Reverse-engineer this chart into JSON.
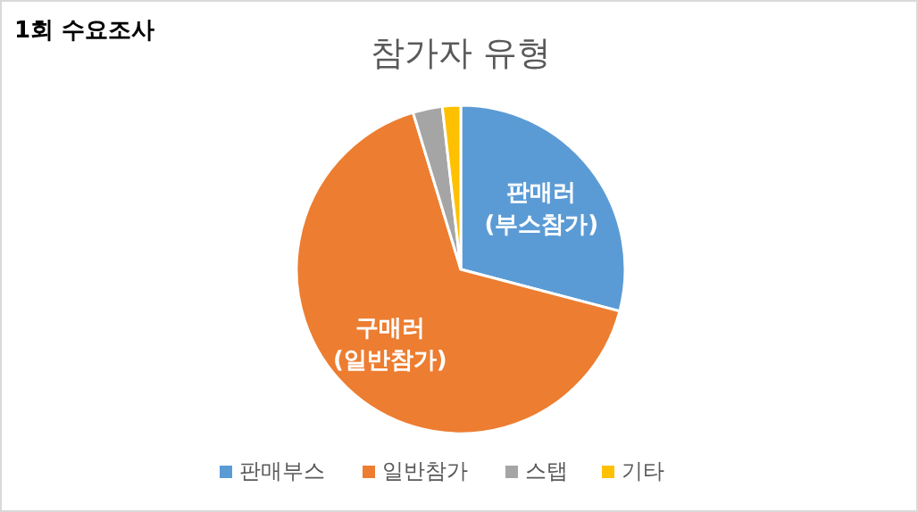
{
  "chart_data": {
    "type": "pie",
    "title": "참가자 유형",
    "subtitle": "1회 수요조사",
    "categories": [
      "판매부스",
      "일반참가",
      "스탭",
      "기타"
    ],
    "values": [
      29.1,
      66.2,
      2.9,
      1.8
    ],
    "colors": [
      "#5b9bd5",
      "#ed7d31",
      "#a5a5a5",
      "#ffc000"
    ],
    "annotations": [
      "판매러\n(부스참가)",
      "구매러\n(일반참가)"
    ],
    "legend": "bottom"
  }
}
